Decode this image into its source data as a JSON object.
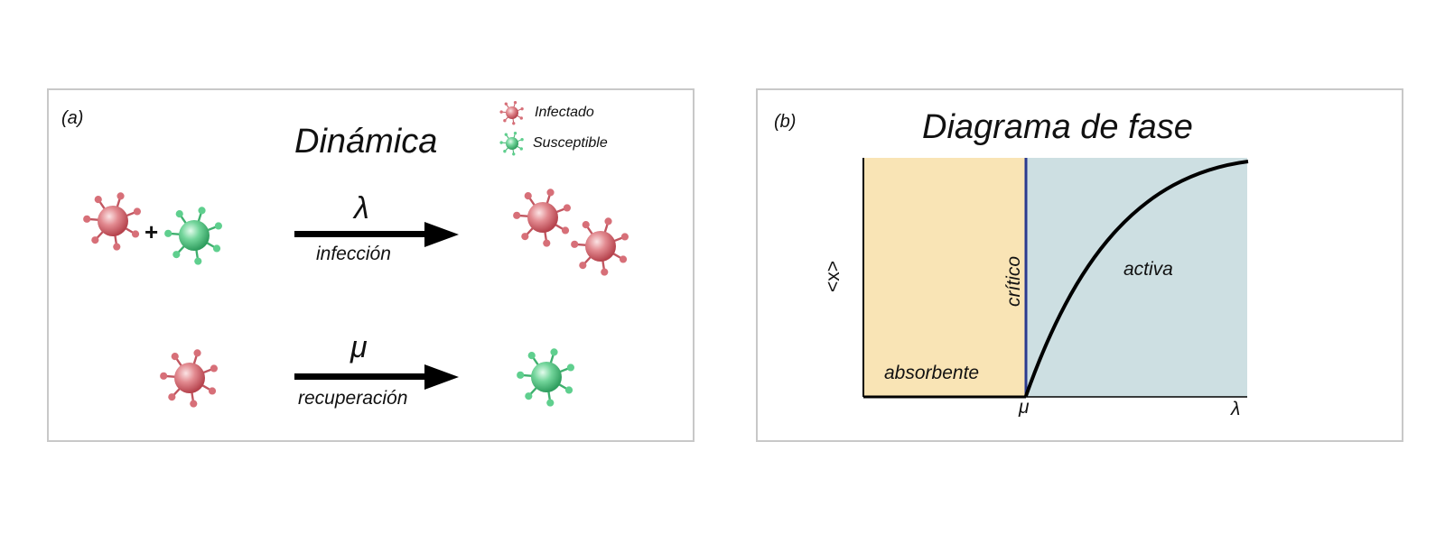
{
  "panel_a": {
    "tag": "(a)",
    "title": "Dinámica",
    "legend": [
      {
        "label": "Infectado",
        "color": "#d9707a"
      },
      {
        "label": "Susceptible",
        "color": "#56c988"
      }
    ],
    "plus": "+",
    "infection": {
      "symbol": "λ",
      "label": "infección"
    },
    "recovery": {
      "symbol": "μ",
      "label": "recuperación"
    }
  },
  "panel_b": {
    "tag": "(b)",
    "title": "Diagrama de fase",
    "ylabel": "<x>",
    "critical_label": "crítico",
    "absorbing_label": "absorbente",
    "active_label": "activa",
    "xtick_mu": "μ",
    "xtick_lambda": "λ",
    "colors": {
      "absorbing": "#f9e4b5",
      "active": "#cddfe2",
      "critical_line": "#2b3a8f",
      "curve": "#000000"
    }
  }
}
